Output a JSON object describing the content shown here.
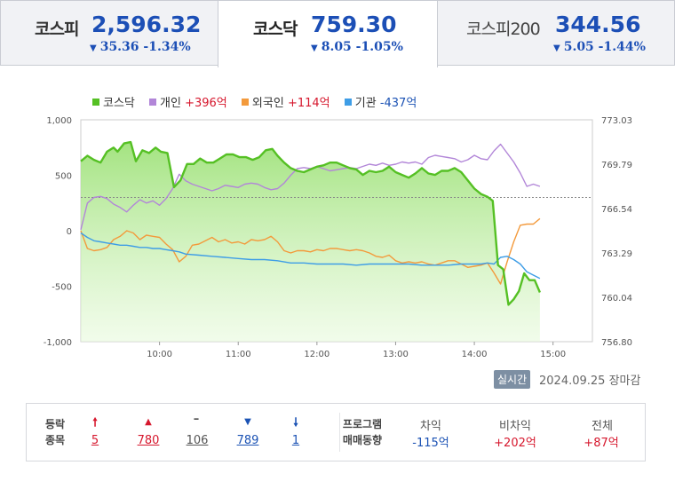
{
  "tabs": [
    {
      "name": "코스피",
      "value": "2,596.32",
      "change": "35.36 -1.34%"
    },
    {
      "name": "코스닥",
      "value": "759.30",
      "change": "8.05 -1.05%"
    },
    {
      "name": "코스피200",
      "value": "344.56",
      "change": "5.05 -1.44%"
    }
  ],
  "colors": {
    "kosdaq": "#55c024",
    "individual": "#b286d8",
    "foreign": "#f39a3c",
    "institution": "#3e9de6",
    "up": "#d6172d",
    "down": "#1b52b4"
  },
  "legend": [
    {
      "name": "코스닥",
      "value": ""
    },
    {
      "name": "개인",
      "value": "+396억"
    },
    {
      "name": "외국인",
      "value": "+114억"
    },
    {
      "name": "기관",
      "value": "-437억"
    }
  ],
  "chart_data": {
    "type": "line",
    "x_ticks": [
      "10:00",
      "11:00",
      "12:00",
      "13:00",
      "14:00",
      "15:00"
    ],
    "y_left_ticks": [
      "1,000",
      "500",
      "0",
      "-500",
      "-1,000"
    ],
    "y_left_range": [
      -1000,
      1000
    ],
    "y_right_ticks": [
      "773.03",
      "769.79",
      "766.54",
      "763.29",
      "760.04",
      "756.80"
    ],
    "y_right_range": [
      756.8,
      773.03
    ],
    "reference_right": 767.35,
    "x_range_minutes": [
      0,
      390
    ],
    "series": [
      {
        "name": "코스닥",
        "axis": "right",
        "area": true,
        "points": [
          [
            0,
            770.0
          ],
          [
            5,
            770.4
          ],
          [
            10,
            770.1
          ],
          [
            15,
            769.9
          ],
          [
            20,
            770.7
          ],
          [
            25,
            771.0
          ],
          [
            28,
            770.7
          ],
          [
            33,
            771.3
          ],
          [
            38,
            771.4
          ],
          [
            42,
            770.0
          ],
          [
            47,
            770.8
          ],
          [
            52,
            770.6
          ],
          [
            57,
            771.0
          ],
          [
            61,
            770.7
          ],
          [
            66,
            770.6
          ],
          [
            71,
            768.1
          ],
          [
            76,
            768.6
          ],
          [
            81,
            769.8
          ],
          [
            86,
            769.8
          ],
          [
            91,
            770.2
          ],
          [
            96,
            769.9
          ],
          [
            101,
            769.9
          ],
          [
            106,
            770.2
          ],
          [
            111,
            770.5
          ],
          [
            116,
            770.5
          ],
          [
            121,
            770.3
          ],
          [
            126,
            770.3
          ],
          [
            131,
            770.1
          ],
          [
            136,
            770.3
          ],
          [
            141,
            770.8
          ],
          [
            146,
            770.9
          ],
          [
            150,
            770.4
          ],
          [
            155,
            769.9
          ],
          [
            160,
            769.5
          ],
          [
            165,
            769.3
          ],
          [
            170,
            769.2
          ],
          [
            175,
            769.4
          ],
          [
            180,
            769.6
          ],
          [
            185,
            769.7
          ],
          [
            190,
            769.9
          ],
          [
            195,
            769.9
          ],
          [
            200,
            769.7
          ],
          [
            205,
            769.5
          ],
          [
            210,
            769.4
          ],
          [
            215,
            769.0
          ],
          [
            220,
            769.3
          ],
          [
            225,
            769.2
          ],
          [
            230,
            769.3
          ],
          [
            235,
            769.6
          ],
          [
            240,
            769.2
          ],
          [
            245,
            769.0
          ],
          [
            250,
            768.8
          ],
          [
            255,
            769.1
          ],
          [
            260,
            769.5
          ],
          [
            265,
            769.1
          ],
          [
            270,
            769.0
          ],
          [
            275,
            769.3
          ],
          [
            280,
            769.3
          ],
          [
            285,
            769.5
          ],
          [
            290,
            769.2
          ],
          [
            295,
            768.6
          ],
          [
            300,
            768.0
          ],
          [
            305,
            767.6
          ],
          [
            310,
            767.4
          ],
          [
            314,
            767.1
          ],
          [
            318,
            762.4
          ],
          [
            322,
            762.1
          ],
          [
            326,
            759.5
          ],
          [
            330,
            759.9
          ],
          [
            334,
            760.5
          ],
          [
            338,
            761.8
          ],
          [
            342,
            761.3
          ],
          [
            346,
            761.3
          ],
          [
            350,
            760.4
          ]
        ]
      },
      {
        "name": "개인",
        "axis": "left",
        "points": [
          [
            0,
            10
          ],
          [
            5,
            250
          ],
          [
            10,
            300
          ],
          [
            15,
            310
          ],
          [
            20,
            290
          ],
          [
            25,
            240
          ],
          [
            30,
            210
          ],
          [
            35,
            170
          ],
          [
            40,
            230
          ],
          [
            45,
            280
          ],
          [
            50,
            250
          ],
          [
            55,
            270
          ],
          [
            60,
            230
          ],
          [
            65,
            290
          ],
          [
            70,
            380
          ],
          [
            75,
            510
          ],
          [
            80,
            450
          ],
          [
            85,
            420
          ],
          [
            90,
            400
          ],
          [
            95,
            380
          ],
          [
            100,
            360
          ],
          [
            105,
            380
          ],
          [
            110,
            410
          ],
          [
            115,
            400
          ],
          [
            120,
            390
          ],
          [
            125,
            420
          ],
          [
            130,
            430
          ],
          [
            135,
            420
          ],
          [
            140,
            390
          ],
          [
            145,
            370
          ],
          [
            150,
            380
          ],
          [
            155,
            430
          ],
          [
            160,
            500
          ],
          [
            165,
            560
          ],
          [
            170,
            570
          ],
          [
            175,
            560
          ],
          [
            180,
            580
          ],
          [
            185,
            560
          ],
          [
            190,
            540
          ],
          [
            195,
            550
          ],
          [
            200,
            560
          ],
          [
            205,
            570
          ],
          [
            210,
            560
          ],
          [
            215,
            580
          ],
          [
            220,
            600
          ],
          [
            225,
            590
          ],
          [
            230,
            610
          ],
          [
            235,
            590
          ],
          [
            240,
            600
          ],
          [
            245,
            620
          ],
          [
            250,
            610
          ],
          [
            255,
            620
          ],
          [
            260,
            600
          ],
          [
            265,
            660
          ],
          [
            270,
            680
          ],
          [
            275,
            670
          ],
          [
            280,
            660
          ],
          [
            285,
            650
          ],
          [
            290,
            620
          ],
          [
            295,
            640
          ],
          [
            300,
            680
          ],
          [
            305,
            650
          ],
          [
            310,
            640
          ],
          [
            315,
            720
          ],
          [
            320,
            780
          ],
          [
            325,
            700
          ],
          [
            330,
            620
          ],
          [
            335,
            520
          ],
          [
            340,
            400
          ],
          [
            345,
            420
          ],
          [
            350,
            400
          ]
        ]
      },
      {
        "name": "외국인",
        "axis": "left",
        "points": [
          [
            0,
            0
          ],
          [
            5,
            -160
          ],
          [
            10,
            -180
          ],
          [
            15,
            -170
          ],
          [
            20,
            -150
          ],
          [
            25,
            -80
          ],
          [
            30,
            -50
          ],
          [
            35,
            0
          ],
          [
            40,
            -20
          ],
          [
            45,
            -80
          ],
          [
            50,
            -40
          ],
          [
            55,
            -50
          ],
          [
            60,
            -60
          ],
          [
            65,
            -120
          ],
          [
            70,
            -170
          ],
          [
            75,
            -280
          ],
          [
            80,
            -230
          ],
          [
            85,
            -130
          ],
          [
            90,
            -120
          ],
          [
            95,
            -90
          ],
          [
            100,
            -60
          ],
          [
            105,
            -100
          ],
          [
            110,
            -80
          ],
          [
            115,
            -110
          ],
          [
            120,
            -100
          ],
          [
            125,
            -120
          ],
          [
            130,
            -80
          ],
          [
            135,
            -90
          ],
          [
            140,
            -80
          ],
          [
            145,
            -50
          ],
          [
            150,
            -100
          ],
          [
            155,
            -180
          ],
          [
            160,
            -200
          ],
          [
            165,
            -180
          ],
          [
            170,
            -180
          ],
          [
            175,
            -190
          ],
          [
            180,
            -170
          ],
          [
            185,
            -180
          ],
          [
            190,
            -160
          ],
          [
            195,
            -160
          ],
          [
            200,
            -170
          ],
          [
            205,
            -180
          ],
          [
            210,
            -170
          ],
          [
            215,
            -180
          ],
          [
            220,
            -200
          ],
          [
            225,
            -230
          ],
          [
            230,
            -240
          ],
          [
            235,
            -220
          ],
          [
            240,
            -270
          ],
          [
            245,
            -290
          ],
          [
            250,
            -280
          ],
          [
            255,
            -290
          ],
          [
            260,
            -280
          ],
          [
            265,
            -300
          ],
          [
            270,
            -310
          ],
          [
            275,
            -290
          ],
          [
            280,
            -270
          ],
          [
            285,
            -270
          ],
          [
            290,
            -300
          ],
          [
            295,
            -330
          ],
          [
            300,
            -320
          ],
          [
            305,
            -310
          ],
          [
            310,
            -290
          ],
          [
            315,
            -380
          ],
          [
            320,
            -480
          ],
          [
            325,
            -280
          ],
          [
            330,
            -100
          ],
          [
            335,
            50
          ],
          [
            340,
            60
          ],
          [
            345,
            60
          ],
          [
            350,
            110
          ]
        ]
      },
      {
        "name": "기관",
        "axis": "left",
        "points": [
          [
            0,
            -20
          ],
          [
            5,
            -60
          ],
          [
            10,
            -90
          ],
          [
            15,
            -100
          ],
          [
            20,
            -110
          ],
          [
            25,
            -120
          ],
          [
            30,
            -130
          ],
          [
            35,
            -130
          ],
          [
            40,
            -140
          ],
          [
            45,
            -150
          ],
          [
            50,
            -150
          ],
          [
            55,
            -160
          ],
          [
            60,
            -160
          ],
          [
            65,
            -170
          ],
          [
            70,
            -180
          ],
          [
            75,
            -190
          ],
          [
            80,
            -210
          ],
          [
            90,
            -220
          ],
          [
            100,
            -230
          ],
          [
            110,
            -240
          ],
          [
            120,
            -250
          ],
          [
            130,
            -260
          ],
          [
            140,
            -260
          ],
          [
            150,
            -270
          ],
          [
            160,
            -290
          ],
          [
            170,
            -290
          ],
          [
            180,
            -300
          ],
          [
            190,
            -300
          ],
          [
            200,
            -300
          ],
          [
            210,
            -310
          ],
          [
            220,
            -300
          ],
          [
            230,
            -300
          ],
          [
            240,
            -300
          ],
          [
            250,
            -300
          ],
          [
            260,
            -310
          ],
          [
            270,
            -310
          ],
          [
            280,
            -310
          ],
          [
            290,
            -300
          ],
          [
            300,
            -300
          ],
          [
            305,
            -300
          ],
          [
            310,
            -290
          ],
          [
            315,
            -300
          ],
          [
            320,
            -240
          ],
          [
            325,
            -230
          ],
          [
            330,
            -260
          ],
          [
            335,
            -300
          ],
          [
            340,
            -370
          ],
          [
            345,
            -400
          ],
          [
            350,
            -430
          ]
        ]
      }
    ]
  },
  "footer": {
    "realtime_label": "실시간",
    "date": "2024.09.25",
    "status": "장마감"
  },
  "stats": {
    "label1": "등락",
    "label2": "종목",
    "upper_limit": "5",
    "up": "780",
    "flat": "106",
    "down": "789",
    "lower_limit": "1",
    "program_label1": "프로그램",
    "program_label2": "매매동향",
    "arb_label": "차익",
    "arb_value": "-115억",
    "nonarb_label": "비차익",
    "nonarb_value": "+202억",
    "total_label": "전체",
    "total_value": "+87억"
  }
}
